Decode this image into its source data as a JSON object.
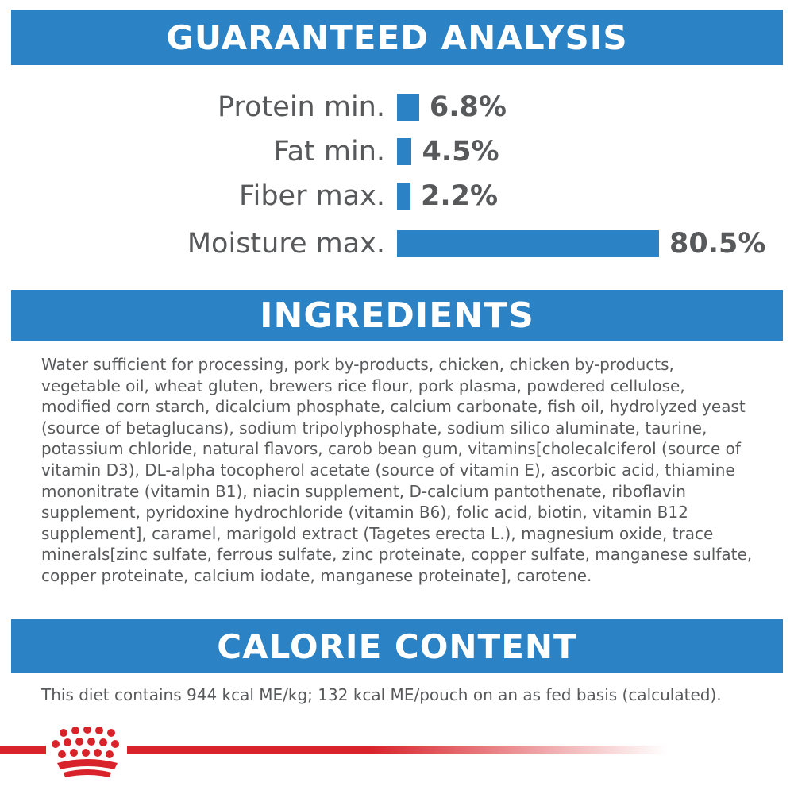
{
  "colors": {
    "accent": "#2b82c4",
    "text": "#58595b",
    "brand_red": "#d8232a"
  },
  "headers": {
    "analysis": "GUARANTEED ANALYSIS",
    "ingredients": "INGREDIENTS",
    "calories": "CALORIE CONTENT"
  },
  "chart_data": {
    "type": "bar",
    "orientation": "horizontal",
    "title": "GUARANTEED ANALYSIS",
    "categories": [
      "Protein min.",
      "Fat min.",
      "Fiber max.",
      "Moisture max."
    ],
    "values": [
      6.8,
      4.5,
      2.2,
      80.5
    ],
    "value_labels": [
      "6.8%",
      "4.5%",
      "2.2%",
      "80.5%"
    ],
    "unit": "%",
    "grid": false,
    "legend": "none"
  },
  "ingredients": {
    "text": "Water sufficient for processing, pork by-products, chicken, chicken by-products, vegetable oil, wheat gluten, brewers rice flour, pork plasma, powdered cellulose, modified corn starch, dicalcium phosphate, calcium carbonate, fish oil, hydrolyzed yeast (source of betaglucans), sodium tripolyphosphate, sodium silico aluminate, taurine, potassium chloride, natural flavors, carob bean gum, vitamins[cholecalciferol (source of vitamin D3), DL-alpha tocopherol acetate (source of vitamin E), ascorbic acid, thiamine mononitrate (vitamin B1), niacin supplement, D-calcium pantothenate, riboflavin supplement, pyridoxine hydrochloride (vitamin B6), folic acid, biotin, vitamin B12 supplement], caramel, marigold extract (Tagetes erecta L.), magnesium oxide, trace minerals[zinc sulfate, ferrous sulfate, zinc proteinate, copper sulfate, manganese sulfate, copper proteinate, calcium iodate, manganese proteinate], carotene."
  },
  "calorie_content": {
    "text": "This diet contains 944 kcal ME/kg; 132 kcal ME/pouch on an as fed basis (calculated)."
  },
  "footer": {
    "logo_icon": "royal-canin-crown-icon"
  }
}
